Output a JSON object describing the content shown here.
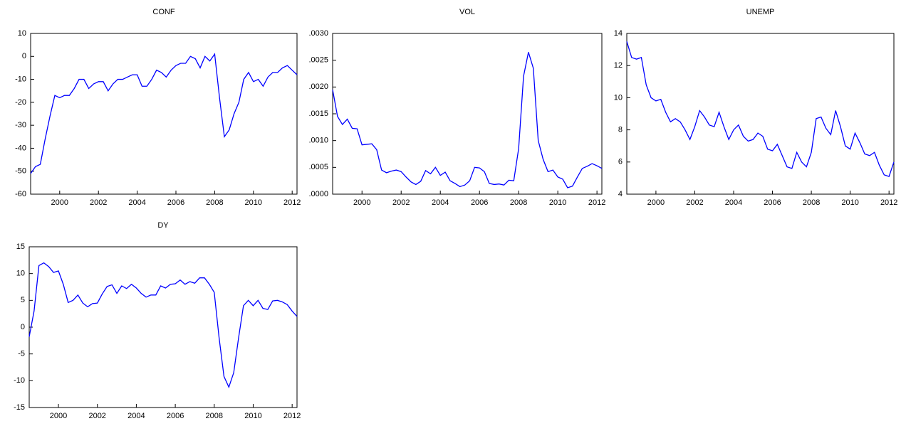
{
  "chart_data": [
    {
      "type": "line",
      "title": "CONF",
      "color": "#0000ff",
      "x": [
        1998.5,
        1998.75,
        1999,
        1999.25,
        1999.5,
        1999.75,
        2000,
        2000.25,
        2000.5,
        2000.75,
        2001,
        2001.25,
        2001.5,
        2001.75,
        2002,
        2002.25,
        2002.5,
        2002.75,
        2003,
        2003.25,
        2003.5,
        2003.75,
        2004,
        2004.25,
        2004.5,
        2004.75,
        2005,
        2005.25,
        2005.5,
        2005.75,
        2006,
        2006.25,
        2006.5,
        2006.75,
        2007,
        2007.25,
        2007.5,
        2007.75,
        2008,
        2008.25,
        2008.5,
        2008.75,
        2009,
        2009.25,
        2009.5,
        2009.75,
        2010,
        2010.25,
        2010.5,
        2010.75,
        2011,
        2011.25,
        2011.5,
        2011.75,
        2012,
        2012.25
      ],
      "values": [
        -51,
        -48,
        -47,
        -36,
        -26,
        -17,
        -18,
        -17,
        -17,
        -14,
        -10,
        -10,
        -14,
        -12,
        -11,
        -11,
        -15,
        -12,
        -10,
        -10,
        -9,
        -8,
        -8,
        -13,
        -13,
        -10,
        -6,
        -7,
        -9,
        -6,
        -4,
        -3,
        -3,
        0,
        -1,
        -5,
        0,
        -2,
        1,
        -18,
        -35,
        -32,
        -25,
        -20,
        -10,
        -7,
        -11,
        -10,
        -13,
        -9,
        -7,
        -7,
        -5,
        -4,
        -6,
        -8
      ],
      "xlim": [
        1998.5,
        2012.25
      ],
      "xticks": [
        2000,
        2002,
        2004,
        2006,
        2008,
        2010,
        2012
      ],
      "ylim": [
        -60,
        10
      ],
      "yticks": [
        10,
        0,
        -10,
        -20,
        -30,
        -40,
        -50,
        -60
      ]
    },
    {
      "type": "line",
      "title": "VOL",
      "color": "#0000ff",
      "x": [
        1998.5,
        1998.75,
        1999,
        1999.25,
        1999.5,
        1999.75,
        2000,
        2000.25,
        2000.5,
        2000.75,
        2001,
        2001.25,
        2001.5,
        2001.75,
        2002,
        2002.25,
        2002.5,
        2002.75,
        2003,
        2003.25,
        2003.5,
        2003.75,
        2004,
        2004.25,
        2004.5,
        2004.75,
        2005,
        2005.25,
        2005.5,
        2005.75,
        2006,
        2006.25,
        2006.5,
        2006.75,
        2007,
        2007.25,
        2007.5,
        2007.75,
        2008,
        2008.25,
        2008.5,
        2008.75,
        2009,
        2009.25,
        2009.5,
        2009.75,
        2010,
        2010.25,
        2010.5,
        2010.75,
        2011,
        2011.25,
        2011.5,
        2011.75,
        2012,
        2012.25
      ],
      "values": [
        0.00195,
        0.00145,
        0.0013,
        0.0014,
        0.00123,
        0.00122,
        0.00092,
        0.00093,
        0.00094,
        0.00083,
        0.00045,
        0.0004,
        0.00043,
        0.00045,
        0.00042,
        0.00032,
        0.00023,
        0.00018,
        0.00024,
        0.00044,
        0.00038,
        0.0005,
        0.00035,
        0.00041,
        0.00025,
        0.0002,
        0.00014,
        0.00017,
        0.00025,
        0.0005,
        0.00049,
        0.00042,
        0.0002,
        0.00018,
        0.00019,
        0.00017,
        0.00026,
        0.00025,
        0.00085,
        0.0022,
        0.00265,
        0.00235,
        0.001,
        0.00065,
        0.00042,
        0.00045,
        0.00032,
        0.00028,
        0.00012,
        0.00015,
        0.00032,
        0.00048,
        0.00052,
        0.00057,
        0.00053,
        0.00048
      ],
      "xlim": [
        1998.5,
        2012.25
      ],
      "xticks": [
        2000,
        2002,
        2004,
        2006,
        2008,
        2010,
        2012
      ],
      "ylim": [
        0,
        0.003
      ],
      "yticks": [
        {
          "value": 0.003,
          "label": ".0030"
        },
        {
          "value": 0.0025,
          "label": ".0025"
        },
        {
          "value": 0.002,
          "label": ".0020"
        },
        {
          "value": 0.0015,
          "label": ".0015"
        },
        {
          "value": 0.001,
          "label": ".0010"
        },
        {
          "value": 0.0005,
          "label": ".0005"
        },
        {
          "value": 0,
          "label": ".0000"
        }
      ]
    },
    {
      "type": "line",
      "title": "UNEMP",
      "color": "#0000ff",
      "x": [
        1998.5,
        1998.75,
        1999,
        1999.25,
        1999.5,
        1999.75,
        2000,
        2000.25,
        2000.5,
        2000.75,
        2001,
        2001.25,
        2001.5,
        2001.75,
        2002,
        2002.25,
        2002.5,
        2002.75,
        2003,
        2003.25,
        2003.5,
        2003.75,
        2004,
        2004.25,
        2004.5,
        2004.75,
        2005,
        2005.25,
        2005.5,
        2005.75,
        2006,
        2006.25,
        2006.5,
        2006.75,
        2007,
        2007.25,
        2007.5,
        2007.75,
        2008,
        2008.25,
        2008.5,
        2008.75,
        2009,
        2009.25,
        2009.5,
        2009.75,
        2010,
        2010.25,
        2010.5,
        2010.75,
        2011,
        2011.25,
        2011.5,
        2011.75,
        2012,
        2012.25
      ],
      "values": [
        13.5,
        12.5,
        12.4,
        12.5,
        10.8,
        10,
        9.8,
        9.9,
        9.1,
        8.5,
        8.7,
        8.5,
        8,
        7.4,
        8.2,
        9.2,
        8.8,
        8.3,
        8.2,
        9.1,
        8.2,
        7.4,
        8,
        8.3,
        7.6,
        7.3,
        7.4,
        7.8,
        7.6,
        6.8,
        6.7,
        7.1,
        6.4,
        5.7,
        5.6,
        6.6,
        6,
        5.7,
        6.6,
        8.7,
        8.8,
        8.1,
        7.7,
        9.2,
        8.2,
        7,
        6.8,
        7.8,
        7.2,
        6.5,
        6.4,
        6.6,
        5.8,
        5.2,
        5.1,
        6
      ],
      "xlim": [
        1998.5,
        2012.25
      ],
      "xticks": [
        2000,
        2002,
        2004,
        2006,
        2008,
        2010,
        2012
      ],
      "ylim": [
        4,
        14
      ],
      "yticks": [
        14,
        12,
        10,
        8,
        6,
        4
      ]
    },
    {
      "type": "line",
      "title": "DY",
      "color": "#0000ff",
      "x": [
        1998.5,
        1998.75,
        1999,
        1999.25,
        1999.5,
        1999.75,
        2000,
        2000.25,
        2000.5,
        2000.75,
        2001,
        2001.25,
        2001.5,
        2001.75,
        2002,
        2002.25,
        2002.5,
        2002.75,
        2003,
        2003.25,
        2003.5,
        2003.75,
        2004,
        2004.25,
        2004.5,
        2004.75,
        2005,
        2005.25,
        2005.5,
        2005.75,
        2006,
        2006.25,
        2006.5,
        2006.75,
        2007,
        2007.25,
        2007.5,
        2007.75,
        2008,
        2008.25,
        2008.5,
        2008.75,
        2009,
        2009.25,
        2009.5,
        2009.75,
        2010,
        2010.25,
        2010.5,
        2010.75,
        2011,
        2011.25,
        2011.5,
        2011.75,
        2012,
        2012.25
      ],
      "values": [
        -1.8,
        3,
        11.5,
        12,
        11.3,
        10.2,
        10.5,
        8,
        4.6,
        5,
        6,
        4.5,
        3.8,
        4.4,
        4.5,
        6.2,
        7.6,
        7.9,
        6.3,
        7.7,
        7.2,
        8,
        7.3,
        6.3,
        5.6,
        6,
        6,
        7.7,
        7.3,
        8,
        8.1,
        8.8,
        8,
        8.5,
        8.2,
        9.2,
        9.2,
        8,
        6.5,
        -2,
        -9.2,
        -11.2,
        -8.5,
        -2,
        4,
        5,
        4,
        5,
        3.5,
        3.3,
        4.9,
        5,
        4.7,
        4.2,
        3,
        2
      ],
      "xlim": [
        1998.5,
        2012.25
      ],
      "xticks": [
        2000,
        2002,
        2004,
        2006,
        2008,
        2010,
        2012
      ],
      "ylim": [
        -15,
        15
      ],
      "yticks": [
        15,
        10,
        5,
        0,
        -5,
        -10,
        -15
      ]
    }
  ]
}
